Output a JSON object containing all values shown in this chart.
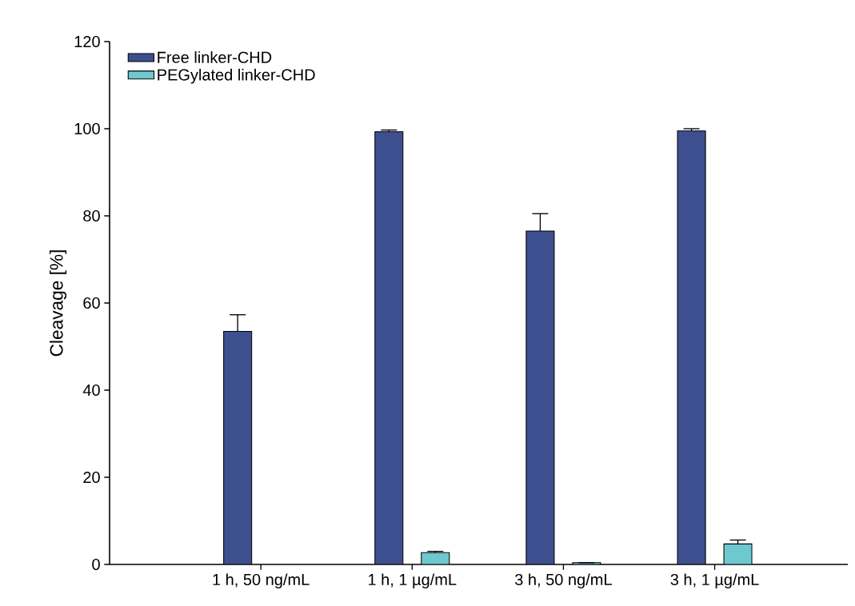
{
  "chart_data": {
    "type": "bar",
    "ylabel": "Cleavage [%]",
    "categories": [
      "1 h, 50 ng/mL",
      "1 h, 1 µg/mL",
      "3 h, 50 ng/mL",
      "3 h, 1 µg/mL"
    ],
    "series": [
      {
        "name": "Free linker-CHD",
        "color": "#3e4f8f",
        "values": [
          53.5,
          99.3,
          76.5,
          99.5
        ],
        "errors": [
          3.8,
          0.4,
          4,
          0.5
        ]
      },
      {
        "name": "PEGylated linker-CHD",
        "color": "#6ec8d0",
        "values": [
          null,
          2.7,
          0.4,
          4.7
        ],
        "errors": [
          null,
          0.3,
          null,
          0.9
        ]
      }
    ],
    "ylim": [
      0,
      120
    ],
    "yticks": [
      0,
      20,
      40,
      60,
      80,
      100,
      120
    ],
    "legend": "top left",
    "grid": false
  }
}
